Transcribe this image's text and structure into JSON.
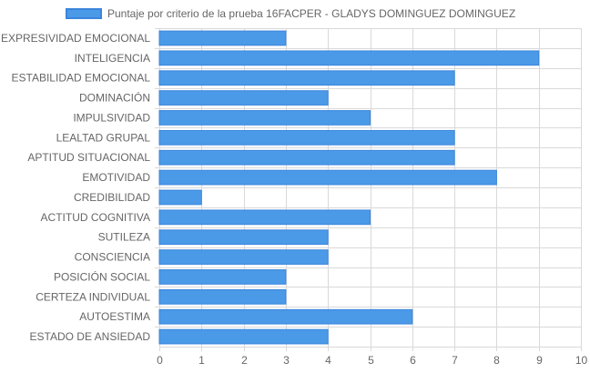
{
  "chart_data": {
    "type": "bar",
    "orientation": "horizontal",
    "legend": {
      "position": "top",
      "label": "Puntaje por criterio de la prueba 16FACPER - GLADYS DOMINGUEZ DOMINGUEZ"
    },
    "categories": [
      "EXPRESIVIDAD EMOCIONAL",
      "INTELIGENCIA",
      "ESTABILIDAD EMOCIONAL",
      "DOMINACIÓN",
      "IMPULSIVIDAD",
      "LEALTAD GRUPAL",
      "APTITUD SITUACIONAL",
      "EMOTIVIDAD",
      "CREDIBILIDAD",
      "ACTITUD COGNITIVA",
      "SUTILEZA",
      "CONSCIENCIA",
      "POSICIÓN SOCIAL",
      "CERTEZA INDIVIDUAL",
      "AUTOESTIMA",
      "ESTADO DE ANSIEDAD"
    ],
    "series": [
      {
        "name": "Puntaje por criterio de la prueba 16FACPER - GLADYS DOMINGUEZ DOMINGUEZ",
        "values": [
          3,
          9,
          7,
          4,
          5,
          7,
          7,
          8,
          1,
          5,
          4,
          4,
          3,
          3,
          6,
          4
        ]
      }
    ],
    "xlim": [
      0,
      10
    ],
    "xticks": [
      "0",
      "1",
      "2",
      "3",
      "4",
      "5",
      "6",
      "7",
      "8",
      "9",
      "10"
    ],
    "grid": true,
    "colors": {
      "bar_fill": "#4a9ae8",
      "bar_border": "#3b85dc",
      "grid": "#d9d9d9",
      "text": "#666666"
    }
  }
}
